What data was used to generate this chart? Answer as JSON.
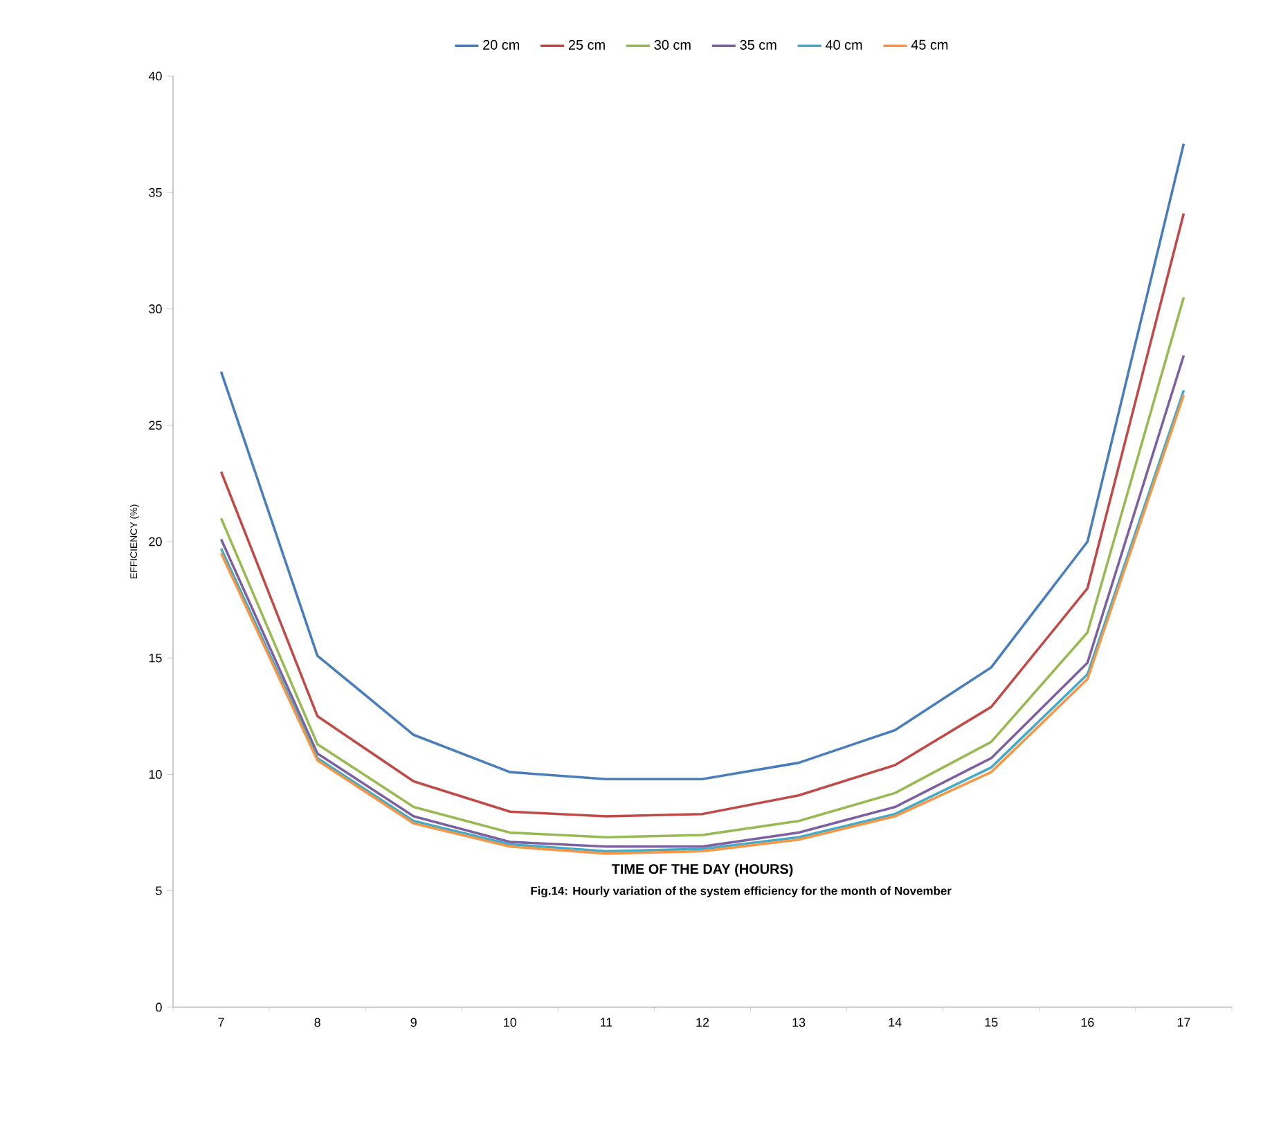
{
  "chart_data": {
    "type": "line",
    "xlabel": "TIME OF THE DAY (HOURS)",
    "ylabel": "EFFICIENCY (%)",
    "annotations": [
      "Fig.14:  Hourly variation   of  the  system efficiency for the month of  November"
    ],
    "categories": [
      "7",
      "8",
      "9",
      "10",
      "11",
      "12",
      "13",
      "14",
      "15",
      "16",
      "17"
    ],
    "ylim": [
      0,
      40
    ],
    "yticks": [
      0,
      5,
      10,
      15,
      20,
      25,
      30,
      35,
      40
    ],
    "legend": "top",
    "grid": false,
    "marker": "none",
    "series": [
      {
        "name": "20 cm",
        "color": "#4a7ebb",
        "values": [
          27.3,
          15.1,
          11.7,
          10.1,
          9.8,
          9.8,
          10.5,
          11.9,
          14.6,
          20.0,
          37.1
        ]
      },
      {
        "name": "25 cm",
        "color": "#be4b48",
        "values": [
          23.0,
          12.5,
          9.7,
          8.4,
          8.2,
          8.3,
          9.1,
          10.4,
          12.9,
          18.0,
          34.1
        ]
      },
      {
        "name": "30 cm",
        "color": "#98b954",
        "values": [
          21.0,
          11.3,
          8.6,
          7.5,
          7.3,
          7.4,
          8.0,
          9.2,
          11.4,
          16.1,
          30.5
        ]
      },
      {
        "name": "35 cm",
        "color": "#7d60a0",
        "values": [
          20.1,
          10.9,
          8.2,
          7.1,
          6.9,
          6.9,
          7.5,
          8.6,
          10.7,
          14.8,
          28.0
        ]
      },
      {
        "name": "40 cm",
        "color": "#46aac5",
        "values": [
          19.7,
          10.7,
          8.0,
          7.0,
          6.7,
          6.8,
          7.3,
          8.3,
          10.3,
          14.3,
          26.5
        ]
      },
      {
        "name": "45 cm",
        "color": "#f79646",
        "values": [
          19.5,
          10.6,
          7.9,
          6.9,
          6.6,
          6.7,
          7.2,
          8.2,
          10.1,
          14.1,
          26.3
        ]
      }
    ]
  }
}
